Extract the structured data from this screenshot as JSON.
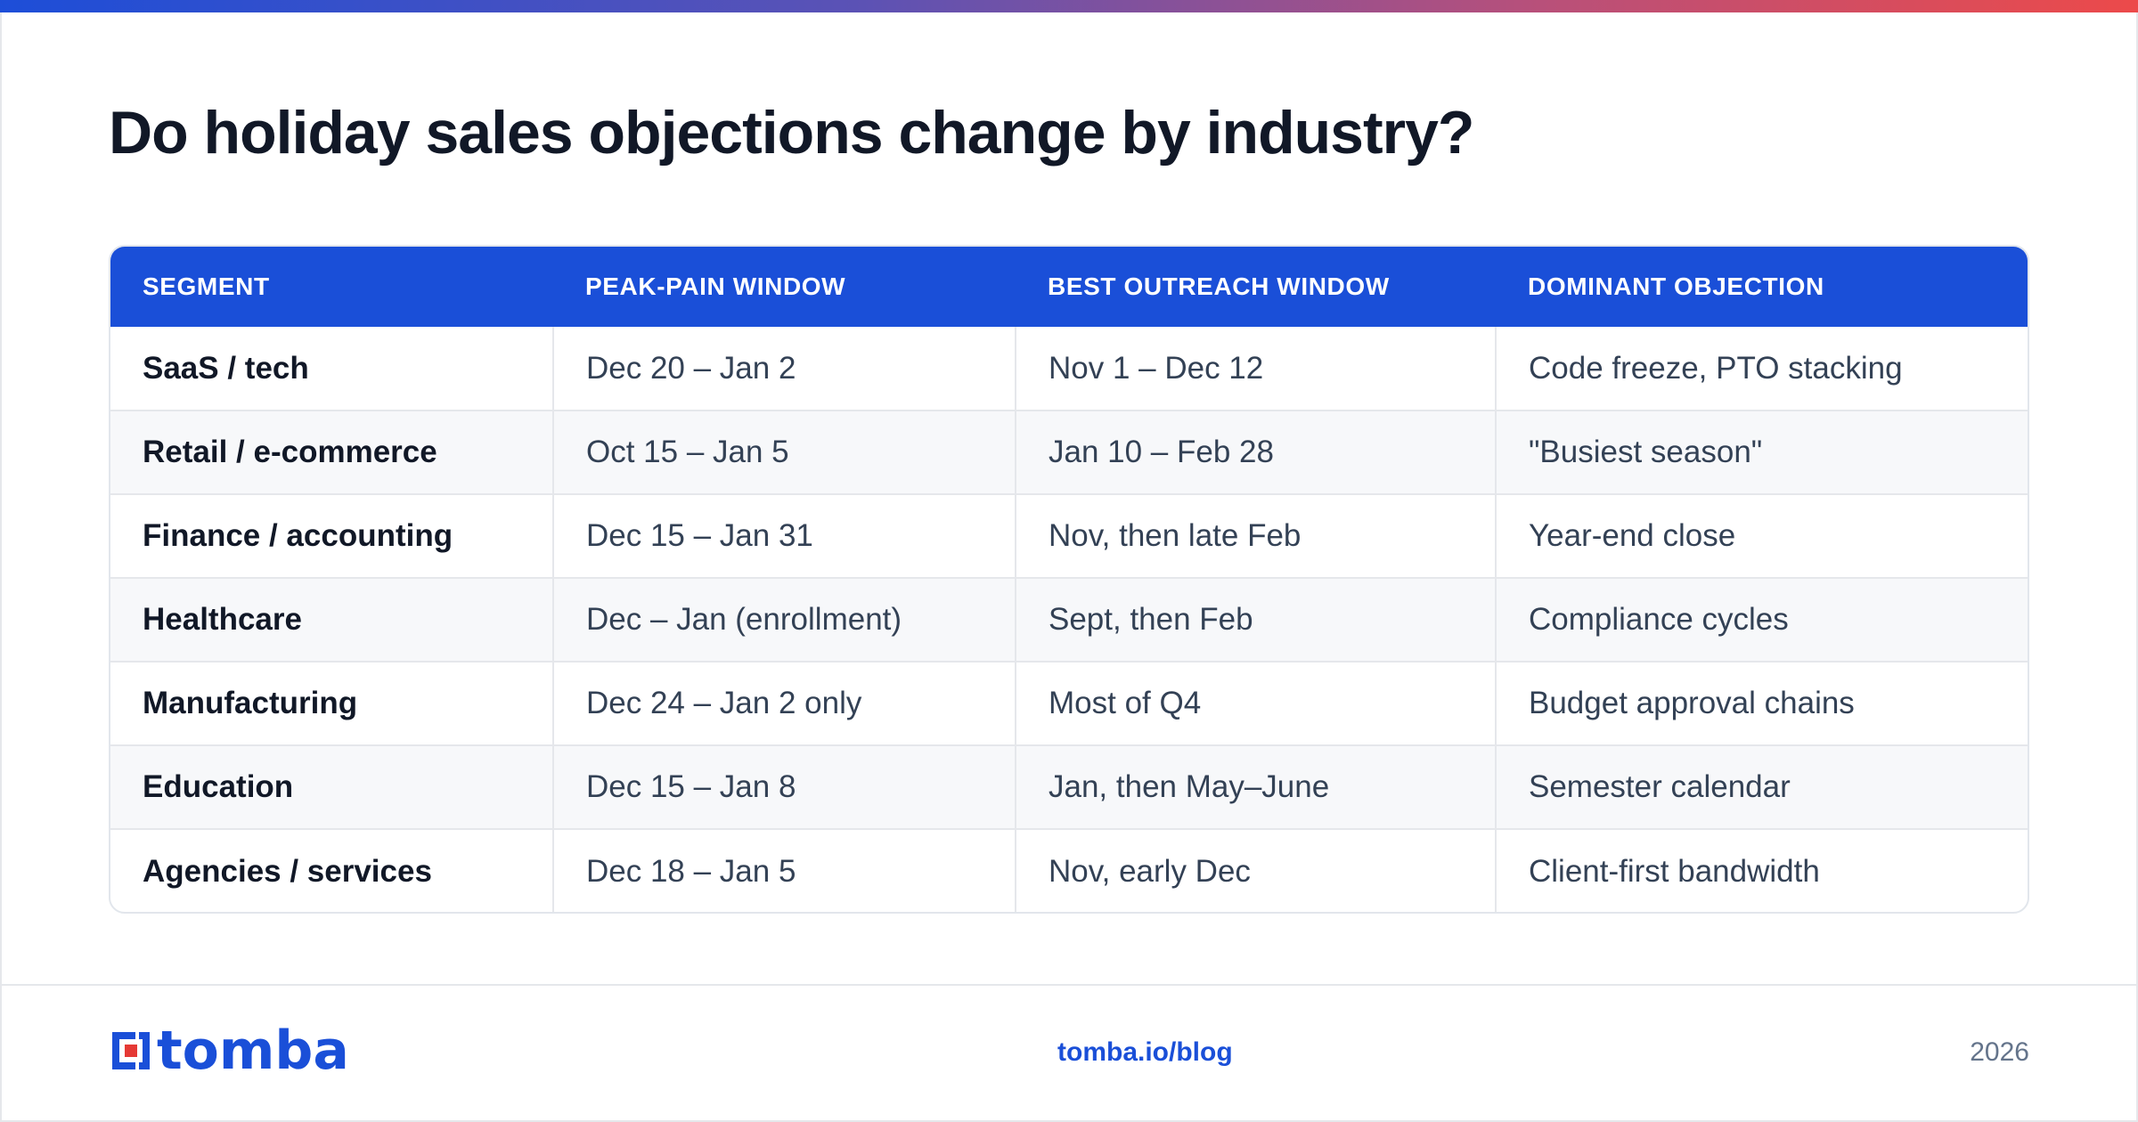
{
  "page": {
    "title": "Do holiday sales objections change by industry?"
  },
  "table": {
    "headers": [
      "SEGMENT",
      "PEAK-PAIN WINDOW",
      "BEST OUTREACH WINDOW",
      "DOMINANT OBJECTION"
    ],
    "rows": [
      [
        "SaaS / tech",
        "Dec 20 – Jan 2",
        "Nov 1 – Dec 12",
        "Code freeze, PTO stacking"
      ],
      [
        "Retail / e-commerce",
        "Oct 15 – Jan 5",
        "Jan 10 – Feb 28",
        "\"Busiest season\""
      ],
      [
        "Finance / accounting",
        "Dec 15 – Jan 31",
        "Nov, then late Feb",
        "Year-end close"
      ],
      [
        "Healthcare",
        "Dec – Jan (enrollment)",
        "Sept, then Feb",
        "Compliance cycles"
      ],
      [
        "Manufacturing",
        "Dec 24 – Jan 2 only",
        "Most of Q4",
        "Budget approval chains"
      ],
      [
        "Education",
        "Dec 15 – Jan 8",
        "Jan, then May–June",
        "Semester calendar"
      ],
      [
        "Agencies / services",
        "Dec 18 – Jan 5",
        "Nov, early Dec",
        "Client-first bandwidth"
      ]
    ]
  },
  "footer": {
    "logo_text": "tomba",
    "logo_icon": "tomba-logo-icon",
    "link": "tomba.io/blog",
    "year": "2026"
  },
  "colors": {
    "accent": "#1a4fd8",
    "logo_red": "#e53935",
    "gradient": [
      "#1d4ed8",
      "#ec4a4a"
    ]
  }
}
